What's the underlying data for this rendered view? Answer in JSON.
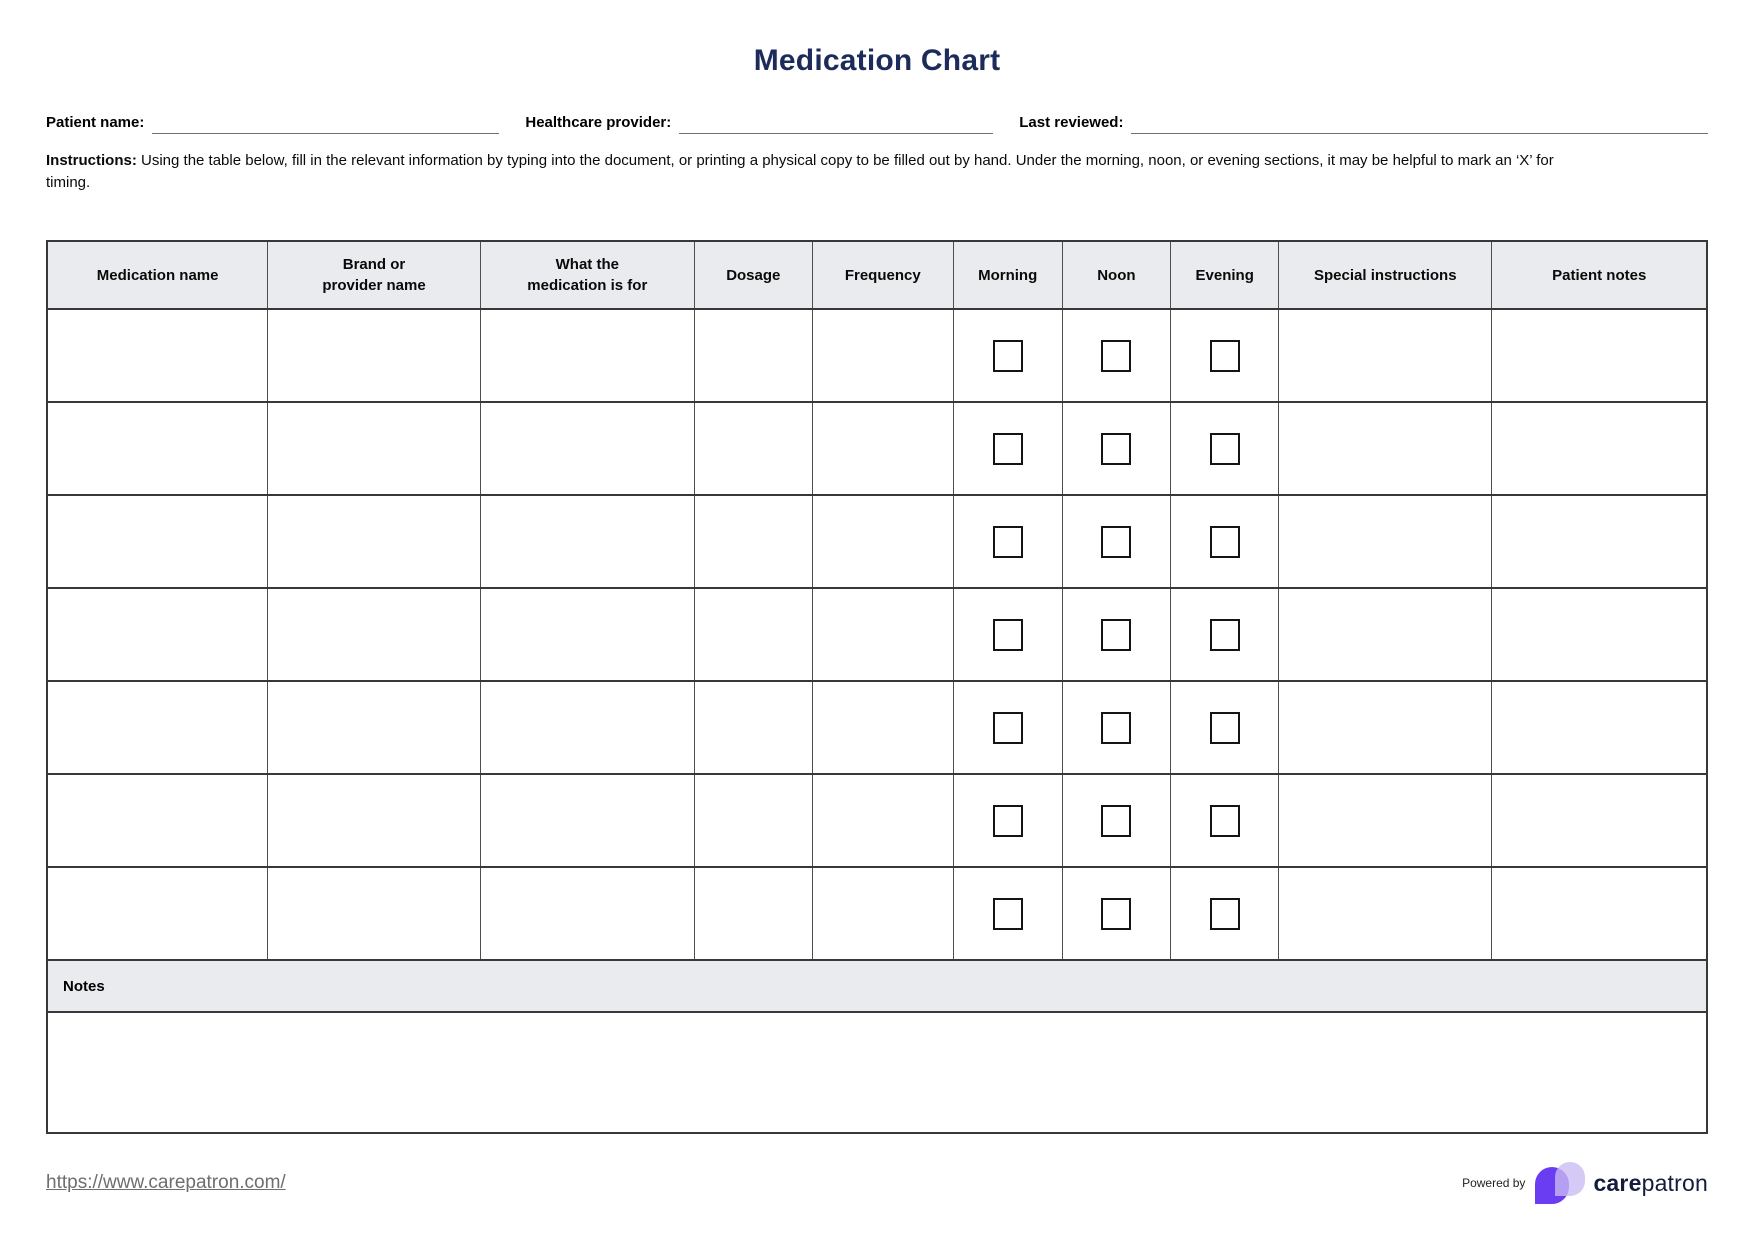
{
  "title": "Medication Chart",
  "fields": {
    "patient_name_label": "Patient name:",
    "healthcare_provider_label": "Healthcare provider:",
    "last_reviewed_label": "Last reviewed:"
  },
  "instructions": {
    "label": "Instructions:",
    "text": " Using the table below, fill in the relevant information by typing into the document, or printing a physical copy to be filled out by hand. Under the morning, noon, or evening sections, it may be helpful to mark an ‘X’ for timing."
  },
  "table": {
    "columns": [
      {
        "label": "Medication name",
        "width_pct": 13.3,
        "checkbox": false
      },
      {
        "label": "Brand or\nprovider name",
        "width_pct": 12.8,
        "checkbox": false
      },
      {
        "label": "What the\nmedication is for",
        "width_pct": 12.9,
        "checkbox": false
      },
      {
        "label": "Dosage",
        "width_pct": 7.1,
        "checkbox": false
      },
      {
        "label": "Frequency",
        "width_pct": 8.5,
        "checkbox": false
      },
      {
        "label": "Morning",
        "width_pct": 6.55,
        "checkbox": true
      },
      {
        "label": "Noon",
        "width_pct": 6.55,
        "checkbox": true
      },
      {
        "label": "Evening",
        "width_pct": 6.5,
        "checkbox": true
      },
      {
        "label": "Special instructions",
        "width_pct": 12.85,
        "checkbox": false
      },
      {
        "label": "Patient notes",
        "width_pct": 12.95,
        "checkbox": false
      }
    ],
    "empty_row_count": 7,
    "notes_label": "Notes"
  },
  "footer": {
    "link": "https://www.carepatron.com/",
    "powered_by": "Powered by",
    "brand_care": "care",
    "brand_patron": "patron"
  },
  "colors": {
    "title_navy": "#1c2b5a",
    "header_bg": "#e9ebee",
    "border_dark": "#383838",
    "border_light": "#4f4f4f",
    "logo_purple": "#6b3df2",
    "logo_lavender": "#c9bbf3",
    "brand_text": "#141c3e",
    "link_gray": "#6e6e6e"
  }
}
